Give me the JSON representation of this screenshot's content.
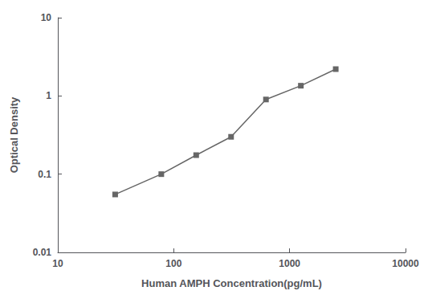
{
  "chart_data": {
    "type": "line",
    "x": [
      31.25,
      78.125,
      156.25,
      312.5,
      625,
      1250,
      2500
    ],
    "values": [
      0.055,
      0.1,
      0.175,
      0.3,
      0.9,
      1.35,
      2.2
    ],
    "xlabel": "Human AMPH Concentration(pg/mL)",
    "ylabel": "Optical Density",
    "xlim": [
      10,
      10000
    ],
    "ylim": [
      0.01,
      10
    ],
    "xticks": [
      10,
      100,
      1000,
      10000
    ],
    "yticks": [
      0.01,
      0.1,
      1,
      10
    ],
    "log": true,
    "grid": false,
    "color": "#666666",
    "marker": "square",
    "line_style": "solid"
  }
}
